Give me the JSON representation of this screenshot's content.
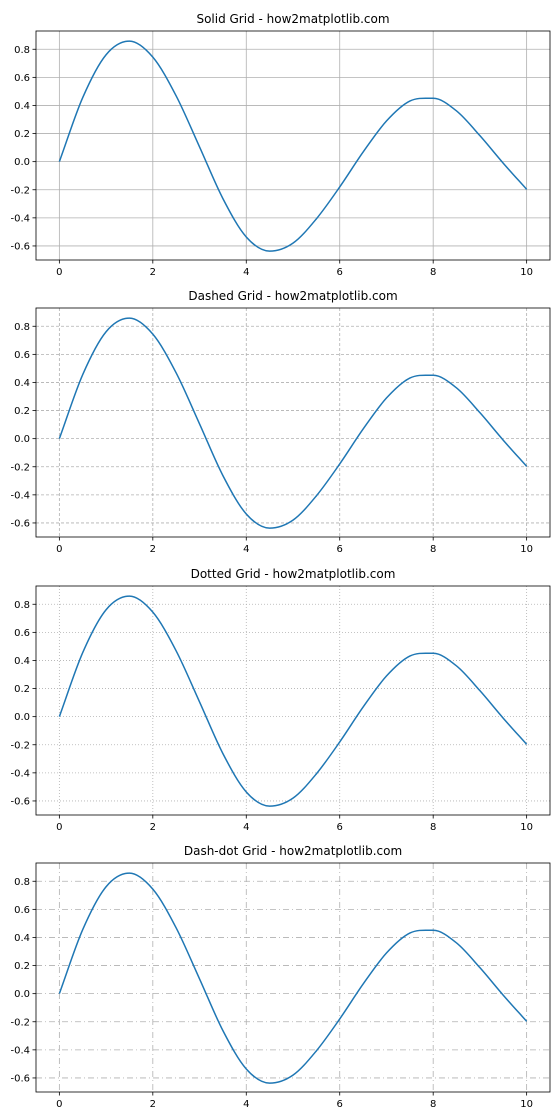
{
  "chart_data": [
    {
      "type": "line",
      "title": "Solid Grid - how2matplotlib.com",
      "grid_style": "solid",
      "grid": true,
      "xlim": [
        -0.5,
        10.5
      ],
      "ylim": [
        -0.7,
        0.93
      ],
      "xticks": [
        0,
        2,
        4,
        6,
        8,
        10
      ],
      "xtick_labels": [
        "0",
        "2",
        "4",
        "6",
        "8",
        "10"
      ],
      "yticks": [
        -0.6,
        -0.4,
        -0.2,
        0.0,
        0.2,
        0.4,
        0.6,
        0.8
      ],
      "ytick_labels": [
        "-0.6",
        "-0.4",
        "-0.2",
        "0.0",
        "0.2",
        "0.4",
        "0.6",
        "0.8"
      ],
      "series": [
        {
          "color": "#1f77b4",
          "x": [
            0,
            0.5,
            1,
            1.5,
            2,
            2.5,
            3,
            3.5,
            4,
            4.5,
            5,
            5.5,
            6,
            6.5,
            7,
            7.5,
            8,
            8.5,
            9,
            9.5,
            10
          ],
          "y": [
            0,
            0.456,
            0.761,
            0.858,
            0.744,
            0.468,
            0.105,
            -0.263,
            -0.536,
            -0.637,
            -0.58,
            -0.407,
            -0.18,
            0.068,
            0.289,
            0.431,
            0.451,
            0.361,
            0.185,
            -0.011,
            -0.197
          ]
        }
      ]
    },
    {
      "type": "line",
      "title": "Dashed Grid - how2matplotlib.com",
      "grid_style": "dashed",
      "grid": true,
      "xlim": [
        -0.5,
        10.5
      ],
      "ylim": [
        -0.7,
        0.93
      ],
      "xticks": [
        0,
        2,
        4,
        6,
        8,
        10
      ],
      "xtick_labels": [
        "0",
        "2",
        "4",
        "6",
        "8",
        "10"
      ],
      "yticks": [
        -0.6,
        -0.4,
        -0.2,
        0.0,
        0.2,
        0.4,
        0.6,
        0.8
      ],
      "ytick_labels": [
        "-0.6",
        "-0.4",
        "-0.2",
        "0.0",
        "0.2",
        "0.4",
        "0.6",
        "0.8"
      ],
      "series": [
        {
          "color": "#1f77b4",
          "x": [
            0,
            0.5,
            1,
            1.5,
            2,
            2.5,
            3,
            3.5,
            4,
            4.5,
            5,
            5.5,
            6,
            6.5,
            7,
            7.5,
            8,
            8.5,
            9,
            9.5,
            10
          ],
          "y": [
            0,
            0.456,
            0.761,
            0.858,
            0.744,
            0.468,
            0.105,
            -0.263,
            -0.536,
            -0.637,
            -0.58,
            -0.407,
            -0.18,
            0.068,
            0.289,
            0.431,
            0.451,
            0.361,
            0.185,
            -0.011,
            -0.197
          ]
        }
      ]
    },
    {
      "type": "line",
      "title": "Dotted Grid - how2matplotlib.com",
      "grid_style": "dotted",
      "grid": true,
      "xlim": [
        -0.5,
        10.5
      ],
      "ylim": [
        -0.7,
        0.93
      ],
      "xticks": [
        0,
        2,
        4,
        6,
        8,
        10
      ],
      "xtick_labels": [
        "0",
        "2",
        "4",
        "6",
        "8",
        "10"
      ],
      "yticks": [
        -0.6,
        -0.4,
        -0.2,
        0.0,
        0.2,
        0.4,
        0.6,
        0.8
      ],
      "ytick_labels": [
        "-0.6",
        "-0.4",
        "-0.2",
        "0.0",
        "0.2",
        "0.4",
        "0.6",
        "0.8"
      ],
      "series": [
        {
          "color": "#1f77b4",
          "x": [
            0,
            0.5,
            1,
            1.5,
            2,
            2.5,
            3,
            3.5,
            4,
            4.5,
            5,
            5.5,
            6,
            6.5,
            7,
            7.5,
            8,
            8.5,
            9,
            9.5,
            10
          ],
          "y": [
            0,
            0.456,
            0.761,
            0.858,
            0.744,
            0.468,
            0.105,
            -0.263,
            -0.536,
            -0.637,
            -0.58,
            -0.407,
            -0.18,
            0.068,
            0.289,
            0.431,
            0.451,
            0.361,
            0.185,
            -0.011,
            -0.197
          ]
        }
      ]
    },
    {
      "type": "line",
      "title": "Dash-dot Grid - how2matplotlib.com",
      "grid_style": "dash-dot",
      "grid": true,
      "xlim": [
        -0.5,
        10.5
      ],
      "ylim": [
        -0.7,
        0.93
      ],
      "xticks": [
        0,
        2,
        4,
        6,
        8,
        10
      ],
      "xtick_labels": [
        "0",
        "2",
        "4",
        "6",
        "8",
        "10"
      ],
      "yticks": [
        -0.6,
        -0.4,
        -0.2,
        0.0,
        0.2,
        0.4,
        0.6,
        0.8
      ],
      "ytick_labels": [
        "-0.6",
        "-0.4",
        "-0.2",
        "0.0",
        "0.2",
        "0.4",
        "0.6",
        "0.8"
      ],
      "series": [
        {
          "color": "#1f77b4",
          "x": [
            0,
            0.5,
            1,
            1.5,
            2,
            2.5,
            3,
            3.5,
            4,
            4.5,
            5,
            5.5,
            6,
            6.5,
            7,
            7.5,
            8,
            8.5,
            9,
            9.5,
            10
          ],
          "y": [
            0,
            0.456,
            0.761,
            0.858,
            0.744,
            0.468,
            0.105,
            -0.263,
            -0.536,
            -0.637,
            -0.58,
            -0.407,
            -0.18,
            0.068,
            0.289,
            0.431,
            0.451,
            0.361,
            0.185,
            -0.011,
            -0.197
          ]
        }
      ]
    }
  ]
}
